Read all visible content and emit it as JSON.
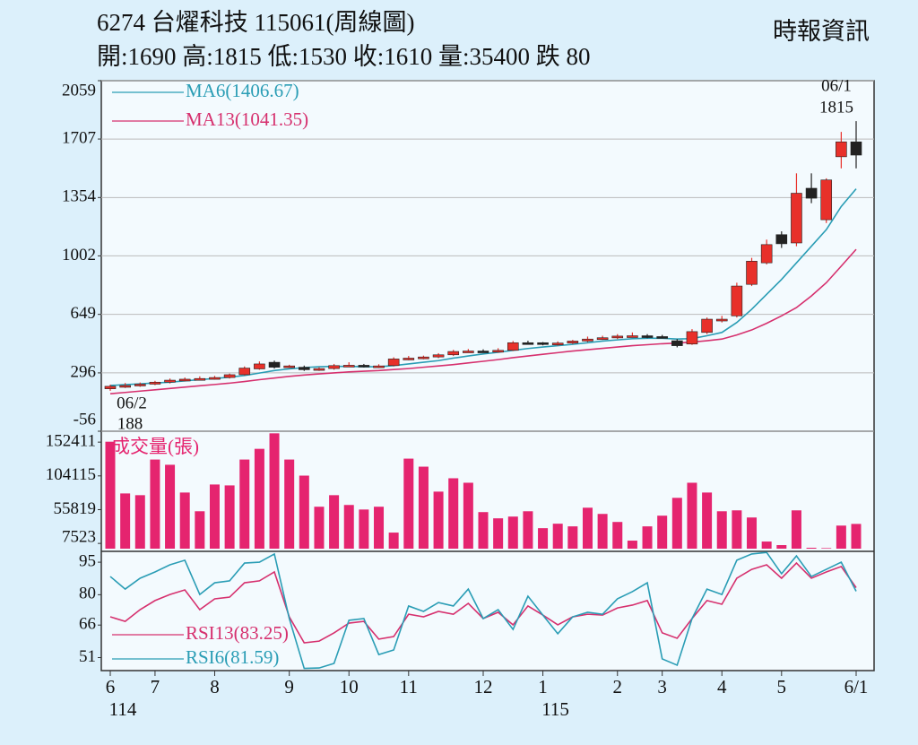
{
  "header": {
    "title": "6274  台燿科技 115061(周線圖)",
    "summary": "開:1690 高:1815 低:1530 收:1610 量:35400 跌 80",
    "source": "時報資訊"
  },
  "chart_data": [
    {
      "type": "candlestick",
      "open": [
        200,
        215,
        220,
        228,
        240,
        252,
        258,
        262,
        268,
        285,
        320,
        360,
        330,
        330,
        315,
        322,
        340,
        342,
        335,
        340,
        380,
        385,
        392,
        405,
        425,
        428,
        425,
        432,
        478,
        478,
        468,
        476,
        488,
        500,
        508,
        518,
        520,
        515,
        490,
        470,
        540,
        610,
        640,
        830,
        960,
        1130,
        1080,
        1410,
        1220,
        1600,
        1690
      ],
      "high": [
        225,
        235,
        238,
        248,
        262,
        268,
        275,
        278,
        292,
        335,
        365,
        370,
        345,
        340,
        330,
        350,
        360,
        350,
        348,
        390,
        398,
        400,
        415,
        435,
        440,
        438,
        445,
        488,
        490,
        482,
        486,
        495,
        515,
        520,
        530,
        540,
        530,
        525,
        500,
        560,
        630,
        640,
        840,
        990,
        1100,
        1150,
        1500,
        1500,
        1470,
        1750,
        1815
      ],
      "low": [
        188,
        205,
        212,
        222,
        232,
        245,
        250,
        255,
        262,
        280,
        315,
        322,
        325,
        308,
        308,
        315,
        332,
        328,
        325,
        335,
        372,
        378,
        385,
        398,
        418,
        418,
        418,
        428,
        468,
        462,
        460,
        470,
        482,
        495,
        500,
        510,
        505,
        505,
        450,
        465,
        530,
        600,
        630,
        820,
        950,
        1050,
        1060,
        1320,
        1200,
        1530,
        1530
      ],
      "close": [
        215,
        220,
        228,
        240,
        252,
        258,
        262,
        268,
        285,
        325,
        350,
        330,
        338,
        315,
        322,
        340,
        342,
        335,
        338,
        380,
        385,
        392,
        405,
        425,
        428,
        425,
        432,
        478,
        475,
        468,
        476,
        488,
        500,
        508,
        518,
        520,
        515,
        510,
        460,
        545,
        620,
        620,
        820,
        970,
        1070,
        1075,
        1380,
        1350,
        1460,
        1690,
        1610
      ],
      "up_color": "#e8302a",
      "down_color": "#222222",
      "series": [
        {
          "name": "MA6(1406.67)",
          "color": "#2a9db5",
          "values": [
            220,
            225,
            230,
            235,
            240,
            248,
            255,
            262,
            270,
            280,
            295,
            310,
            320,
            328,
            333,
            335,
            335,
            333,
            333,
            340,
            350,
            360,
            370,
            385,
            398,
            410,
            420,
            432,
            443,
            452,
            460,
            468,
            478,
            488,
            495,
            502,
            505,
            505,
            500,
            503,
            520,
            540,
            600,
            680,
            770,
            860,
            960,
            1060,
            1160,
            1300,
            1406.67
          ]
        },
        {
          "name": "MA13(1041.35)",
          "color": "#d6306e",
          "values": [
            170,
            178,
            186,
            194,
            202,
            210,
            218,
            226,
            234,
            244,
            255,
            265,
            275,
            283,
            290,
            296,
            302,
            306,
            310,
            316,
            322,
            330,
            338,
            346,
            356,
            366,
            376,
            388,
            398,
            408,
            418,
            428,
            436,
            444,
            452,
            460,
            466,
            472,
            476,
            482,
            490,
            500,
            525,
            555,
            595,
            640,
            690,
            760,
            840,
            940,
            1041.35
          ]
        }
      ],
      "ylim": [
        -56,
        2059
      ],
      "yticks": [
        -56,
        296,
        649,
        1002,
        1354,
        1707,
        2059
      ],
      "grid": true,
      "high_label": {
        "date": "06/1",
        "value": 1815
      },
      "low_label": {
        "date": "06/2",
        "value": 188
      }
    },
    {
      "type": "bar",
      "series": [
        {
          "name": "成交量(張)",
          "color": "#e5246f",
          "values": [
            153000,
            79000,
            76500,
            127500,
            120000,
            80300,
            53500,
            91800,
            90500,
            127500,
            142800,
            165000,
            127500,
            104500,
            60000,
            76500,
            62500,
            56000,
            60000,
            23000,
            128800,
            117300,
            81600,
            100700,
            94300,
            52300,
            43400,
            45900,
            53500,
            29300,
            35700,
            31900,
            58600,
            49700,
            38200,
            11500,
            31900,
            47200,
            72700,
            94300,
            80300,
            53500,
            54800,
            44600,
            10200,
            5100,
            54800,
            1300,
            800,
            33000,
            35400
          ]
        }
      ],
      "ylim": [
        0,
        168000
      ],
      "yticks": [
        7523,
        55819,
        104115,
        152411
      ],
      "grid": false
    },
    {
      "type": "line",
      "categories": [
        "6",
        null,
        null,
        "7",
        null,
        null,
        null,
        "8",
        null,
        null,
        null,
        null,
        "9",
        null,
        null,
        null,
        "10",
        null,
        null,
        null,
        "11",
        null,
        null,
        null,
        null,
        "12",
        null,
        null,
        null,
        "1",
        null,
        null,
        null,
        null,
        "2",
        null,
        null,
        "3",
        null,
        null,
        null,
        "4",
        null,
        null,
        null,
        "5",
        null,
        null,
        null,
        null,
        "6/1"
      ],
      "years": [
        "114",
        null,
        null,
        null,
        null,
        null,
        null,
        null,
        null,
        null,
        null,
        null,
        null,
        null,
        null,
        null,
        null,
        null,
        null,
        null,
        null,
        null,
        null,
        null,
        null,
        null,
        null,
        null,
        null,
        "115",
        null,
        null,
        null,
        null,
        null,
        null,
        null,
        null,
        null,
        null,
        null,
        null,
        null,
        null,
        null,
        null,
        null,
        null,
        null,
        null,
        null
      ],
      "series": [
        {
          "name": "RSI13(83.25)",
          "color": "#d6306e",
          "values": [
            69.8,
            67.7,
            73.1,
            77.3,
            80.1,
            82.2,
            73.1,
            78.1,
            78.9,
            85.5,
            86.4,
            90.5,
            69.8,
            57.8,
            58.6,
            62.4,
            66.9,
            67.7,
            59.5,
            60.7,
            71,
            69.8,
            72.3,
            71,
            76,
            69,
            71.9,
            66.1,
            74.8,
            70.6,
            66.1,
            69.8,
            71,
            70.6,
            73.9,
            75.2,
            77.3,
            62.4,
            59.9,
            69,
            77.3,
            75.6,
            87.6,
            91.7,
            93.8,
            87.6,
            94.6,
            87.6,
            90.5,
            93,
            83.25
          ]
        },
        {
          "name": "RSI6(81.59)",
          "color": "#2a9db5",
          "values": [
            88.4,
            82.6,
            87.6,
            90.5,
            93.8,
            95.9,
            80.1,
            85.5,
            86.4,
            94.6,
            95,
            98.8,
            69,
            46,
            46.2,
            48.3,
            68.2,
            69,
            52.4,
            54.5,
            74.8,
            72.3,
            76.4,
            74.8,
            82.6,
            69,
            73.1,
            64,
            79.3,
            70.6,
            62,
            69.8,
            71.9,
            71,
            78.1,
            81.4,
            85.5,
            50.4,
            47.5,
            69,
            82.6,
            80.1,
            95.9,
            98.8,
            99.5,
            89.7,
            97.9,
            88.4,
            91.7,
            95,
            81.59
          ]
        }
      ],
      "ylim": [
        45,
        100
      ],
      "yticks": [
        51,
        66,
        80,
        95
      ],
      "grid": false
    }
  ]
}
